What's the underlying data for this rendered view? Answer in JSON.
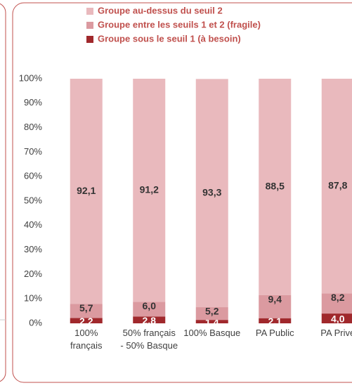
{
  "chart_data": {
    "type": "stacked_bar",
    "categories": [
      "100% français",
      "50% français - 50% Basque",
      "100% Basque",
      "PA Public",
      "PA Privé"
    ],
    "series": [
      {
        "name": "Groupe sous le seuil 1 (à besoin)",
        "color": "#a0282c",
        "values": [
          2.2,
          2.8,
          1.4,
          2.1,
          4.0
        ],
        "value_labels": [
          "2,2",
          "2,8",
          "1,4",
          "2,1",
          "4,0"
        ]
      },
      {
        "name": "Groupe entre les seuils 1 et 2 (fragile)",
        "color": "#db9aa0",
        "values": [
          5.7,
          6.0,
          5.2,
          9.4,
          8.2
        ],
        "value_labels": [
          "5,7",
          "6,0",
          "5,2",
          "9,4",
          "8,2"
        ]
      },
      {
        "name": "Groupe au-dessus du seuil 2",
        "color": "#e9b9bd",
        "values": [
          92.1,
          91.2,
          93.3,
          88.5,
          87.8
        ],
        "value_labels": [
          "92,1",
          "91,2",
          "93,3",
          "88,5",
          "87,8"
        ]
      }
    ],
    "ylim": [
      0,
      100
    ],
    "yticks": [
      {
        "value": 0,
        "label": "0%"
      },
      {
        "value": 10,
        "label": "10%"
      },
      {
        "value": 20,
        "label": "20%"
      },
      {
        "value": 30,
        "label": "30%"
      },
      {
        "value": 40,
        "label": "40%"
      },
      {
        "value": 50,
        "label": "50%"
      },
      {
        "value": 60,
        "label": "60%"
      },
      {
        "value": 70,
        "label": "70%"
      },
      {
        "value": 80,
        "label": "80%"
      },
      {
        "value": 90,
        "label": "90%"
      },
      {
        "value": 100,
        "label": "100%"
      }
    ],
    "legend": "top"
  }
}
